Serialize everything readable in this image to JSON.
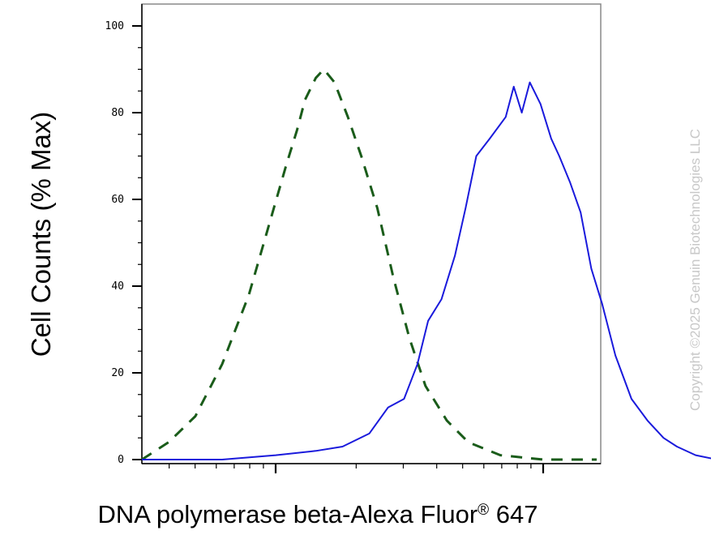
{
  "chart_data": {
    "type": "line",
    "title": "",
    "ylabel": "Cell Counts (% Max)",
    "xlabel": "DNA polymerase beta-Alexa Fluor",
    "xlabel_sup": "®",
    "xlabel_suffix": " 647",
    "x_scale": "log",
    "x_range_decades": [
      0.5,
      2.2
    ],
    "ylim": [
      0,
      100
    ],
    "y_ticks": [
      0,
      20,
      40,
      60,
      80,
      100
    ],
    "y_tick_labels": [
      "0",
      "20",
      "40",
      "60",
      "80",
      "100"
    ],
    "grid": false,
    "series": [
      {
        "style": "dashed",
        "color": "#1a5c1a",
        "points": [
          [
            0.5,
            0
          ],
          [
            0.6,
            4
          ],
          [
            0.7,
            10
          ],
          [
            0.8,
            22
          ],
          [
            0.9,
            38
          ],
          [
            0.97,
            53
          ],
          [
            1.04,
            68
          ],
          [
            1.08,
            76
          ],
          [
            1.11,
            83
          ],
          [
            1.15,
            88
          ],
          [
            1.18,
            90
          ],
          [
            1.22,
            87
          ],
          [
            1.27,
            79
          ],
          [
            1.32,
            70
          ],
          [
            1.38,
            58
          ],
          [
            1.44,
            42
          ],
          [
            1.5,
            28
          ],
          [
            1.56,
            17
          ],
          [
            1.64,
            9
          ],
          [
            1.72,
            4
          ],
          [
            1.84,
            1
          ],
          [
            2.0,
            0
          ],
          [
            2.2,
            0
          ]
        ]
      },
      {
        "style": "solid",
        "color": "#1a1adc",
        "points": [
          [
            0.5,
            0
          ],
          [
            0.8,
            0
          ],
          [
            1.0,
            1
          ],
          [
            1.15,
            2
          ],
          [
            1.25,
            3
          ],
          [
            1.35,
            6
          ],
          [
            1.42,
            12
          ],
          [
            1.48,
            14
          ],
          [
            1.53,
            22
          ],
          [
            1.57,
            32
          ],
          [
            1.62,
            37
          ],
          [
            1.67,
            47
          ],
          [
            1.71,
            58
          ],
          [
            1.75,
            70
          ],
          [
            1.8,
            74
          ],
          [
            1.86,
            79
          ],
          [
            1.89,
            86
          ],
          [
            1.92,
            80
          ],
          [
            1.95,
            87
          ],
          [
            1.99,
            82
          ],
          [
            2.03,
            74
          ],
          [
            2.06,
            70
          ],
          [
            2.1,
            64
          ],
          [
            2.14,
            57
          ],
          [
            2.18,
            44
          ],
          [
            2.22,
            36
          ],
          [
            2.27,
            24
          ],
          [
            2.33,
            14
          ],
          [
            2.39,
            9
          ],
          [
            2.45,
            5
          ],
          [
            2.5,
            3
          ],
          [
            2.57,
            1
          ],
          [
            2.65,
            0
          ],
          [
            2.7,
            0
          ]
        ]
      }
    ]
  },
  "watermark": "Copyright ©2025 Genuin Biotechnologies LLC"
}
